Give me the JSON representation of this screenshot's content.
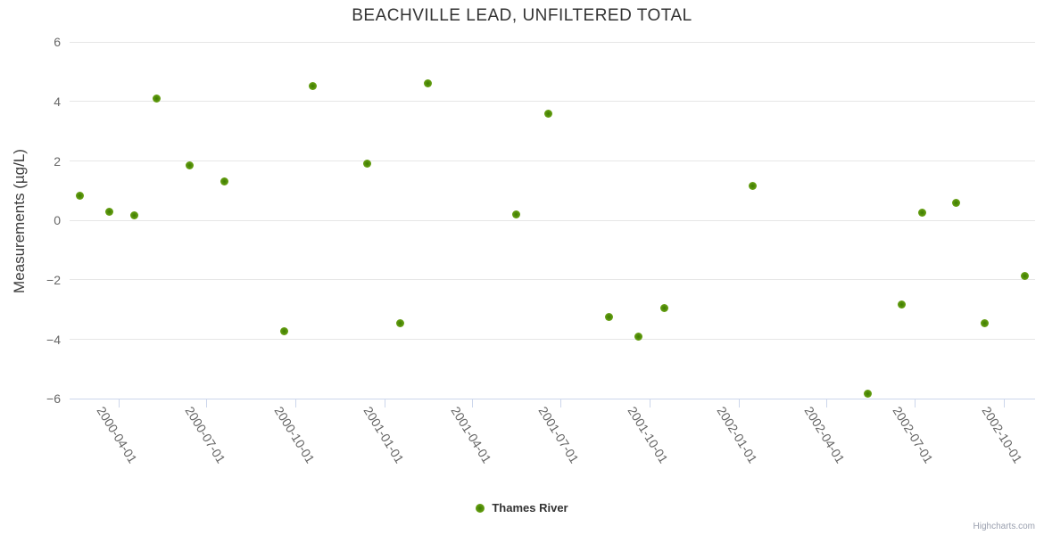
{
  "chart_data": {
    "type": "scatter",
    "title": "BEACHVILLE LEAD, UNFILTERED TOTAL",
    "xlabel": "",
    "ylabel": "Measurements (µg/L)",
    "ylim": [
      -6,
      6
    ],
    "y_tick_values": [
      6,
      4,
      2,
      0,
      -2,
      -4,
      -6
    ],
    "y_tick_labels": [
      "6",
      "4",
      "2",
      "0",
      "−2",
      "−4",
      "−6"
    ],
    "x_ticks": [
      "2000-04-01",
      "2000-07-01",
      "2000-10-01",
      "2001-01-01",
      "2001-04-01",
      "2001-07-01",
      "2001-10-01",
      "2002-01-01",
      "2002-04-01",
      "2002-07-01",
      "2002-10-01"
    ],
    "grid": true,
    "legend_position": "bottom-center",
    "colors": {
      "marker_green": "#5a9407",
      "gridline": "#e6e6e6",
      "axis_line": "#ccd6eb",
      "title_text": "#333333",
      "axis_label_text": "#666666"
    },
    "series": [
      {
        "name": "Thames River",
        "points": [
          {
            "date": "2000-02-21",
            "value": 0.82
          },
          {
            "date": "2000-03-22",
            "value": 0.28
          },
          {
            "date": "2000-04-17",
            "value": 0.18
          },
          {
            "date": "2000-05-10",
            "value": 4.1
          },
          {
            "date": "2000-06-13",
            "value": 1.85
          },
          {
            "date": "2000-07-19",
            "value": 1.32
          },
          {
            "date": "2000-09-19",
            "value": -3.73
          },
          {
            "date": "2000-10-18",
            "value": 4.52
          },
          {
            "date": "2000-12-13",
            "value": 1.9
          },
          {
            "date": "2001-01-16",
            "value": -3.47
          },
          {
            "date": "2001-02-14",
            "value": 4.61
          },
          {
            "date": "2001-05-16",
            "value": 0.2
          },
          {
            "date": "2001-06-18",
            "value": 3.6
          },
          {
            "date": "2001-08-20",
            "value": -3.24
          },
          {
            "date": "2001-09-19",
            "value": -3.91
          },
          {
            "date": "2001-10-16",
            "value": -2.95
          },
          {
            "date": "2002-01-15",
            "value": 1.17
          },
          {
            "date": "2002-05-14",
            "value": -5.84
          },
          {
            "date": "2002-06-18",
            "value": -2.82
          },
          {
            "date": "2002-07-09",
            "value": 0.27
          },
          {
            "date": "2002-08-13",
            "value": 0.6
          },
          {
            "date": "2002-09-11",
            "value": -3.47
          },
          {
            "date": "2002-10-23",
            "value": -1.88
          }
        ]
      }
    ],
    "credits": "Highcharts.com"
  }
}
